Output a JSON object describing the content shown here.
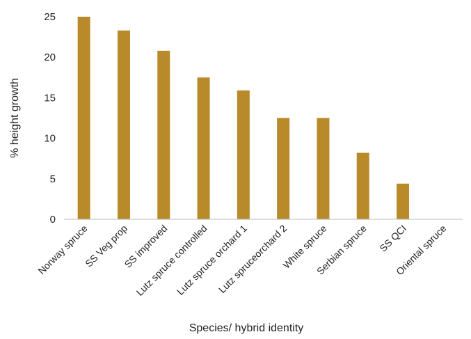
{
  "chart_data": {
    "type": "bar",
    "title": "",
    "xlabel": "Species/ hybrid identity",
    "ylabel": "% height growth",
    "categories": [
      "Norway spruce",
      "SS Veg prop",
      "SS improved",
      "Lutz spruce controlled",
      "Lutz spruce orchard 1",
      "Lutz spruceorchard 2",
      "White spruce",
      "Serbian spruce",
      "SS QCI",
      "Oriental spruce"
    ],
    "values": [
      25,
      23.3,
      20.8,
      17.5,
      15.9,
      12.5,
      12.5,
      8.2,
      4.4,
      0
    ],
    "ylim": [
      0,
      25
    ],
    "yticks": [
      0,
      5,
      10,
      15,
      20,
      25
    ],
    "grid": false,
    "legend": "none",
    "colors": {
      "bar": "#B88A2A",
      "axis": "#BBBBBB"
    }
  }
}
